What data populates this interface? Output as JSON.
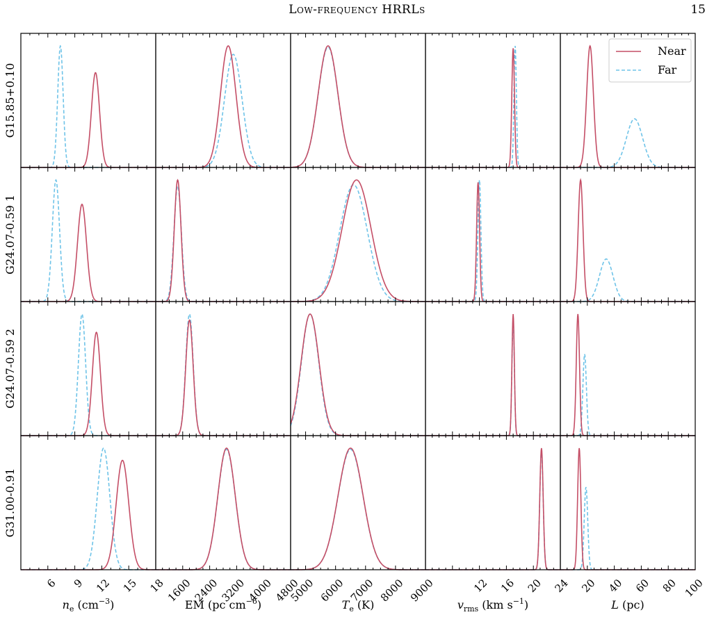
{
  "header": {
    "running_title": "Low-frequency HRRLs",
    "page_number": "15"
  },
  "chart_data": {
    "type": "line",
    "legend": {
      "placement": "top-right",
      "entries": [
        "Near",
        "Far"
      ]
    },
    "colors": {
      "near": "#c44e66",
      "far": "#6ec3e8"
    },
    "rows": [
      "G15.85+0.10",
      "G24.07-0.59 1",
      "G24.07-0.59 2",
      "G31.00-0.91"
    ],
    "columns": [
      {
        "key": "ne",
        "xlabel_parts": [
          "n",
          "e",
          " (cm",
          "−3",
          ")"
        ],
        "xlim": [
          3,
          18
        ],
        "ticks": [
          6,
          9,
          12,
          15,
          18
        ],
        "tick_labels": [
          "6",
          "9",
          "12",
          "15",
          "18"
        ],
        "minor_step": 1
      },
      {
        "key": "em",
        "xlabel_parts": [
          "EM (pc cm",
          "−6",
          ")"
        ],
        "xlim": [
          800,
          4800
        ],
        "ticks": [
          1600,
          2400,
          3200,
          4000,
          4800
        ],
        "tick_labels": [
          "1600",
          "2400",
          "3200",
          "4000",
          "4800"
        ],
        "minor_step": 200
      },
      {
        "key": "te",
        "xlabel_parts": [
          "T",
          "e",
          " (K)"
        ],
        "xlim": [
          4500,
          9000
        ],
        "ticks": [
          5000,
          6000,
          7000,
          8000,
          9000
        ],
        "tick_labels": [
          "5000",
          "6000",
          "7000",
          "8000",
          "9000"
        ],
        "minor_step": 250
      },
      {
        "key": "vrms",
        "xlabel_parts": [
          "v",
          "rms",
          " (km s",
          "−1",
          ")"
        ],
        "xlim": [
          4,
          24
        ],
        "ticks": [
          8,
          12,
          16,
          20,
          24
        ],
        "tick_labels": [
          "",
          "12",
          "16",
          "20",
          "24"
        ],
        "minor_step": 1
      },
      {
        "key": "L",
        "xlabel_parts": [
          "L",
          " (pc)"
        ],
        "xlim": [
          0,
          100
        ],
        "ticks": [
          20,
          40,
          60,
          80,
          100
        ],
        "tick_labels": [
          "20",
          "40",
          "60",
          "80",
          "100"
        ],
        "minor_step": 5
      }
    ],
    "panels": [
      [
        {
          "near": {
            "mu": 11.3,
            "sigma": 0.45,
            "peak": 0.78
          },
          "far": {
            "mu": 7.4,
            "sigma": 0.3,
            "peak": 1.0
          }
        },
        {
          "near": {
            "mu": 2950,
            "sigma": 230,
            "peak": 1.0
          },
          "far": {
            "mu": 3100,
            "sigma": 260,
            "peak": 0.93
          }
        },
        {
          "near": {
            "mu": 5750,
            "sigma": 330,
            "peak": 1.0
          },
          "far": {
            "mu": 5750,
            "sigma": 330,
            "peak": 0.99
          }
        },
        {
          "near": {
            "mu": 17.0,
            "sigma": 0.2,
            "peak": 0.98
          },
          "far": {
            "mu": 17.3,
            "sigma": 0.18,
            "peak": 1.0
          }
        },
        {
          "near": {
            "mu": 22,
            "sigma": 2.5,
            "peak": 1.0
          },
          "far": {
            "mu": 55,
            "sigma": 6,
            "peak": 0.4
          }
        }
      ],
      [
        {
          "near": {
            "mu": 9.8,
            "sigma": 0.5,
            "peak": 0.8
          },
          "far": {
            "mu": 6.9,
            "sigma": 0.4,
            "peak": 1.0
          }
        },
        {
          "near": {
            "mu": 1450,
            "sigma": 100,
            "peak": 1.0
          },
          "far": {
            "mu": 1450,
            "sigma": 110,
            "peak": 0.95
          }
        },
        {
          "near": {
            "mu": 6700,
            "sigma": 480,
            "peak": 1.0
          },
          "far": {
            "mu": 6600,
            "sigma": 460,
            "peak": 0.96
          }
        },
        {
          "near": {
            "mu": 11.8,
            "sigma": 0.22,
            "peak": 0.98
          },
          "far": {
            "mu": 12.0,
            "sigma": 0.22,
            "peak": 1.0
          }
        },
        {
          "near": {
            "mu": 15,
            "sigma": 1.8,
            "peak": 1.0
          },
          "far": {
            "mu": 34,
            "sigma": 5,
            "peak": 0.35
          }
        }
      ],
      [
        {
          "near": {
            "mu": 11.4,
            "sigma": 0.45,
            "peak": 0.85
          },
          "far": {
            "mu": 9.8,
            "sigma": 0.4,
            "peak": 1.0
          }
        },
        {
          "near": {
            "mu": 1800,
            "sigma": 110,
            "peak": 0.95
          },
          "far": {
            "mu": 1800,
            "sigma": 110,
            "peak": 1.0
          }
        },
        {
          "near": {
            "mu": 5150,
            "sigma": 300,
            "peak": 1.0
          },
          "far": {
            "mu": 5150,
            "sigma": 290,
            "peak": 1.0
          }
        },
        {
          "near": {
            "mu": 17.0,
            "sigma": 0.18,
            "peak": 1.0
          },
          "far": {
            "mu": 17.0,
            "sigma": 0.18,
            "peak": 0.96
          }
        },
        {
          "near": {
            "mu": 13,
            "sigma": 1.2,
            "peak": 1.0
          },
          "far": {
            "mu": 18,
            "sigma": 1.3,
            "peak": 0.67
          }
        }
      ],
      [
        {
          "near": {
            "mu": 14.3,
            "sigma": 0.7,
            "peak": 0.9
          },
          "far": {
            "mu": 12.2,
            "sigma": 0.7,
            "peak": 1.0
          }
        },
        {
          "near": {
            "mu": 2900,
            "sigma": 260,
            "peak": 1.0
          },
          "far": {
            "mu": 2900,
            "sigma": 260,
            "peak": 0.99
          }
        },
        {
          "near": {
            "mu": 6500,
            "sigma": 420,
            "peak": 1.0
          },
          "far": {
            "mu": 6500,
            "sigma": 420,
            "peak": 0.99
          }
        },
        {
          "near": {
            "mu": 21.2,
            "sigma": 0.25,
            "peak": 1.0
          },
          "far": {
            "mu": 21.2,
            "sigma": 0.25,
            "peak": 0.98
          }
        },
        {
          "near": {
            "mu": 14,
            "sigma": 1.2,
            "peak": 1.0
          },
          "far": {
            "mu": 19,
            "sigma": 1.3,
            "peak": 0.68
          }
        }
      ]
    ]
  }
}
